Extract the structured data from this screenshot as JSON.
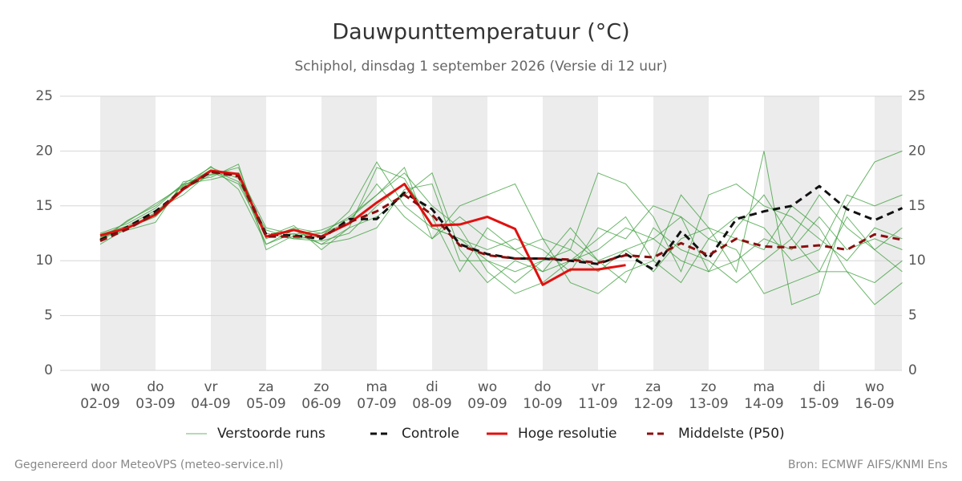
{
  "chart_data": {
    "type": "line",
    "title": "Dauwpunttemperatuur (°C)",
    "subtitle": "Schiphol, dinsdag  1 september 2026 (Versie di 12 uur)",
    "footer_left": "Gegenereerd door MeteoVPS (meteo-service.nl)",
    "footer_right": "Bron: ECMWF AIFS/KNMI Ens",
    "categories": [
      "02-09",
      null,
      "03-09",
      null,
      "04-09",
      null,
      "05-09",
      null,
      "06-09",
      null,
      "07-09",
      null,
      "08-09",
      null,
      "09-09",
      null,
      "10-09",
      null,
      "11-09",
      null,
      "12-09",
      null,
      "13-09",
      null,
      "14-09",
      null,
      "15-09",
      null,
      "16-09",
      null
    ],
    "category_days": [
      "wo",
      null,
      "do",
      null,
      "vr",
      null,
      "za",
      null,
      "zo",
      null,
      "ma",
      null,
      "di",
      null,
      "wo",
      null,
      "do",
      null,
      "vr",
      null,
      "za",
      null,
      "zo",
      null,
      "ma",
      null,
      "di",
      null,
      "wo",
      null
    ],
    "ylim": [
      0,
      25
    ],
    "yticks": [
      0,
      5,
      10,
      15,
      20,
      25
    ],
    "grid": true,
    "ensemble": {
      "name": "Verstoorde runs",
      "color": "#3a9e3a",
      "members": [
        [
          12.5,
          13.4,
          14.8,
          17.0,
          18.5,
          17.5,
          11.5,
          12.5,
          11.5,
          13,
          18.5,
          17.5,
          13,
          12,
          10,
          9,
          10,
          11,
          9,
          11,
          12,
          14,
          9,
          13,
          16,
          12,
          9,
          14,
          11,
          13
        ],
        [
          11.5,
          13,
          14,
          16.5,
          17.8,
          18.5,
          12,
          13,
          12.5,
          14,
          16,
          18,
          15,
          13,
          9,
          7,
          8,
          10,
          12,
          14,
          10,
          16,
          13,
          9,
          20,
          6,
          7,
          15,
          19,
          20
        ],
        [
          12,
          13.6,
          15.2,
          16.8,
          18.3,
          17.2,
          12.8,
          12,
          11.8,
          12.5,
          15,
          17,
          14,
          9,
          13,
          11,
          12,
          8,
          7,
          9,
          10,
          8,
          12,
          11,
          7,
          8,
          9,
          9,
          6,
          8
        ],
        [
          12.2,
          12.8,
          13.5,
          17.2,
          17.6,
          18.8,
          11,
          12.3,
          12.5,
          13.5,
          17,
          14,
          12,
          15,
          16,
          17,
          12,
          11,
          18,
          17,
          14,
          9,
          16,
          17,
          15,
          14,
          12,
          10,
          13,
          12
        ],
        [
          12.4,
          13.2,
          14.6,
          16,
          18.1,
          17,
          12.2,
          13.2,
          11,
          13,
          14,
          16,
          18,
          11,
          8,
          10,
          9,
          12,
          10,
          8,
          13,
          11,
          10,
          8,
          10,
          12,
          16,
          13,
          11,
          9
        ],
        [
          11.8,
          13.7,
          15,
          17,
          17.4,
          18,
          12.5,
          12,
          12.2,
          14.5,
          19,
          15,
          13,
          12,
          11,
          12,
          11,
          9,
          13,
          12,
          15,
          14,
          12,
          14,
          13,
          10,
          11,
          16,
          15,
          16
        ],
        [
          12.1,
          13,
          14.4,
          16.6,
          18.6,
          16.5,
          11.5,
          12.8,
          11.5,
          12,
          13,
          16.5,
          17,
          10,
          10,
          8,
          10,
          13,
          10,
          11,
          9,
          12,
          13,
          12,
          11,
          15,
          13,
          9,
          8,
          10
        ],
        [
          11.9,
          13.1,
          14.1,
          16.9,
          17.9,
          18,
          13,
          12.4,
          12.8,
          13.8,
          16,
          18.5,
          12,
          14,
          12,
          11,
          9,
          10,
          11,
          13,
          12,
          10,
          9,
          10,
          12,
          11,
          14,
          11,
          12,
          11
        ]
      ]
    },
    "series": [
      {
        "name": "Controle",
        "color": "#111111",
        "dashed": true,
        "values": [
          11.9,
          13.1,
          14.5,
          16.5,
          18.1,
          17.8,
          12.4,
          12.3,
          12.0,
          13.8,
          13.8,
          16.2,
          14.7,
          11.5,
          10.6,
          10.2,
          10.2,
          10.0,
          9.7,
          10.6,
          9.2,
          12.7,
          10.2,
          13.8,
          14.5,
          15.0,
          16.8,
          14.7,
          13.7,
          14.8
        ]
      },
      {
        "name": "Hoge resolutie",
        "color": "#e0110f",
        "dashed": false,
        "values": [
          12.3,
          13.0,
          14.2,
          16.5,
          18.2,
          17.9,
          12.2,
          12.8,
          12.2,
          13.4,
          15.3,
          17.0,
          13.2,
          13.3,
          14.0,
          12.9,
          7.8,
          9.2,
          9.2,
          9.6,
          null,
          null,
          null,
          null,
          null,
          null,
          null,
          null,
          null,
          null
        ]
      },
      {
        "name": "Middelste (P50)",
        "color": "#8b0f0f",
        "dashed": true,
        "values": [
          11.8,
          12.9,
          14.3,
          16.6,
          18.1,
          17.7,
          12.2,
          12.2,
          12.2,
          13.5,
          14.5,
          16.0,
          14.2,
          11.4,
          10.5,
          10.2,
          10.2,
          10.1,
          9.8,
          10.5,
          10.3,
          11.6,
          10.5,
          12.0,
          11.3,
          11.2,
          11.4,
          11.0,
          12.4,
          11.9
        ]
      }
    ]
  }
}
